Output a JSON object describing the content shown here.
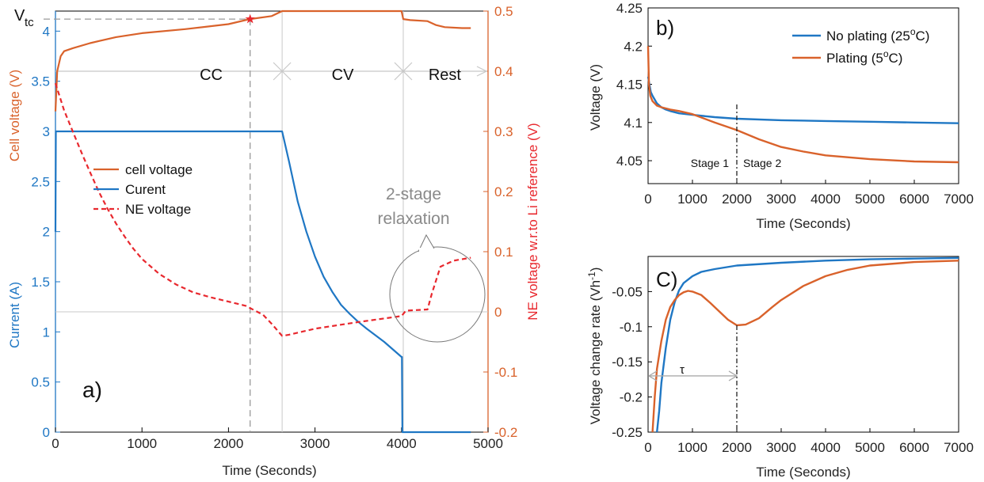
{
  "colors": {
    "voltage": "#D9622B",
    "current": "#1F77C4",
    "ne": "#E8282E",
    "grey": "#888888",
    "stage_line": "#222222"
  },
  "chart_data": [
    {
      "panel": "a)",
      "type": "line",
      "xlabel": "Time (Seconds)",
      "ylabel_left_top": "Cell voltage (V)",
      "ylabel_left_bottom": "Current (A)",
      "ylabel_right": "NE voltage w.r.to Li reference (V)",
      "xlim": [
        0,
        5000
      ],
      "ylim_left": [
        0,
        4.2
      ],
      "ylim_right": [
        -0.2,
        0.5
      ],
      "x_ticks": [
        "0",
        "1000",
        "2000",
        "3000",
        "4000",
        "5000"
      ],
      "y_left_ticks": [
        "0",
        "0.5",
        "1",
        "1.5",
        "2",
        "2.5",
        "3",
        "3.5",
        "4"
      ],
      "y_right_ticks": [
        "-0.2",
        "-0.1",
        "0",
        "0.1",
        "0.2",
        "0.3",
        "0.4",
        "0.5"
      ],
      "vtc_label": "V",
      "vtc_sub": "tc",
      "vtc_time": 2250,
      "vtc_voltage": 4.12,
      "phase_labels": [
        "CC",
        "CV",
        "Rest"
      ],
      "phase_boundaries": [
        2620,
        4020
      ],
      "phase_arrow_level_right": 0.4,
      "legend": [
        "cell voltage",
        "Curent",
        "NE voltage"
      ],
      "annotation": "2-stage\nrelaxation",
      "series": [
        {
          "name": "cell voltage",
          "axis": "left",
          "x": [
            0,
            20,
            60,
            100,
            200,
            400,
            700,
            1000,
            1500,
            2000,
            2250,
            2500,
            2620,
            2700,
            3000,
            3500,
            4000,
            4020,
            4100,
            4300,
            4400,
            4500,
            4700,
            4800
          ],
          "y": [
            3.2,
            3.6,
            3.75,
            3.8,
            3.83,
            3.88,
            3.94,
            3.98,
            4.02,
            4.07,
            4.12,
            4.15,
            4.2,
            4.2,
            4.2,
            4.2,
            4.2,
            4.12,
            4.11,
            4.1,
            4.06,
            4.04,
            4.03,
            4.03
          ]
        },
        {
          "name": "Curent",
          "axis": "left",
          "x": [
            0,
            5,
            10,
            2620,
            2700,
            2800,
            2900,
            3000,
            3100,
            3200,
            3300,
            3400,
            3500,
            3600,
            3800,
            4000,
            4005,
            4010,
            4800
          ],
          "y": [
            2.0,
            3.0,
            3.0,
            3.0,
            2.7,
            2.3,
            2.0,
            1.75,
            1.55,
            1.4,
            1.27,
            1.18,
            1.1,
            1.03,
            0.9,
            0.75,
            0.75,
            0.0,
            0.0
          ]
        },
        {
          "name": "NE voltage",
          "axis": "right",
          "x": [
            0,
            100,
            200,
            300,
            400,
            500,
            600,
            700,
            800,
            900,
            1000,
            1200,
            1400,
            1600,
            1800,
            2000,
            2200,
            2400,
            2500,
            2620,
            2700,
            3000,
            3500,
            4000,
            4050,
            4300,
            4350,
            4450,
            4600,
            4800
          ],
          "y": [
            0.38,
            0.335,
            0.3,
            0.265,
            0.232,
            0.2,
            0.172,
            0.147,
            0.125,
            0.105,
            0.088,
            0.063,
            0.045,
            0.032,
            0.024,
            0.017,
            0.01,
            -0.005,
            -0.02,
            -0.04,
            -0.038,
            -0.028,
            -0.017,
            -0.007,
            0.002,
            0.004,
            0.03,
            0.075,
            0.085,
            0.09
          ]
        }
      ]
    },
    {
      "panel": "b)",
      "type": "line",
      "xlabel": "Time (Seconds)",
      "ylabel": "Voltage (V)",
      "xlim": [
        0,
        7000
      ],
      "ylim": [
        4.02,
        4.25
      ],
      "x_ticks": [
        "0",
        "1000",
        "2000",
        "3000",
        "4000",
        "5000",
        "6000",
        "7000"
      ],
      "y_ticks": [
        "4.05",
        "4.1",
        "4.15",
        "4.2",
        "4.25"
      ],
      "stage_x": 2000,
      "stage_labels": [
        "Stage 1",
        "Stage 2"
      ],
      "legend_texts": {
        "no_plating": "No plating (25",
        "plating": "Plating (5",
        "deg": "o",
        "tail": "C)"
      },
      "series": [
        {
          "name": "No plating",
          "x": [
            0,
            30,
            60,
            100,
            200,
            300,
            400,
            500,
            700,
            1000,
            1500,
            2000,
            3000,
            4000,
            5000,
            6000,
            7000
          ],
          "y": [
            4.16,
            4.15,
            4.14,
            4.135,
            4.125,
            4.12,
            4.117,
            4.115,
            4.112,
            4.11,
            4.107,
            4.105,
            4.103,
            4.102,
            4.101,
            4.1,
            4.099
          ]
        },
        {
          "name": "Plating",
          "x": [
            0,
            20,
            50,
            100,
            200,
            300,
            500,
            700,
            1000,
            1500,
            2000,
            2500,
            3000,
            3500,
            4000,
            5000,
            6000,
            7000
          ],
          "y": [
            4.2,
            4.15,
            4.135,
            4.128,
            4.122,
            4.12,
            4.117,
            4.115,
            4.111,
            4.1,
            4.09,
            4.078,
            4.068,
            4.062,
            4.057,
            4.052,
            4.049,
            4.048
          ]
        }
      ]
    },
    {
      "panel": "C)",
      "type": "line",
      "xlabel": "Time (Seconds)",
      "ylabel": "Voltage change rate (Vh",
      "ylabel_sup": "-1",
      "ylabel_tail": ")",
      "xlim": [
        0,
        7000
      ],
      "ylim": [
        -0.25,
        0.0
      ],
      "x_ticks": [
        "0",
        "1000",
        "2000",
        "3000",
        "4000",
        "5000",
        "6000",
        "7000"
      ],
      "y_ticks": [
        "-0.25",
        "-0.2",
        "-0.15",
        "-0.1",
        "-0.05"
      ],
      "tau_label": "τ",
      "tau_level": -0.17,
      "tau_end": 2000,
      "stage_x": 2000,
      "series": [
        {
          "name": "No plating",
          "x": [
            200,
            250,
            300,
            400,
            500,
            600,
            700,
            800,
            1000,
            1200,
            1500,
            2000,
            3000,
            4000,
            5000,
            6000,
            7000
          ],
          "y": [
            -0.25,
            -0.22,
            -0.18,
            -0.13,
            -0.09,
            -0.065,
            -0.048,
            -0.038,
            -0.028,
            -0.022,
            -0.018,
            -0.013,
            -0.009,
            -0.006,
            -0.004,
            -0.003,
            -0.002
          ]
        },
        {
          "name": "Plating",
          "x": [
            100,
            150,
            200,
            300,
            400,
            500,
            600,
            700,
            800,
            900,
            1000,
            1200,
            1400,
            1600,
            1800,
            2000,
            2200,
            2500,
            2800,
            3000,
            3500,
            4000,
            4500,
            5000,
            6000,
            7000
          ],
          "y": [
            -0.25,
            -0.2,
            -0.16,
            -0.12,
            -0.09,
            -0.072,
            -0.062,
            -0.055,
            -0.051,
            -0.049,
            -0.05,
            -0.055,
            -0.066,
            -0.078,
            -0.09,
            -0.098,
            -0.097,
            -0.088,
            -0.072,
            -0.062,
            -0.042,
            -0.028,
            -0.019,
            -0.013,
            -0.008,
            -0.006
          ]
        }
      ]
    }
  ]
}
